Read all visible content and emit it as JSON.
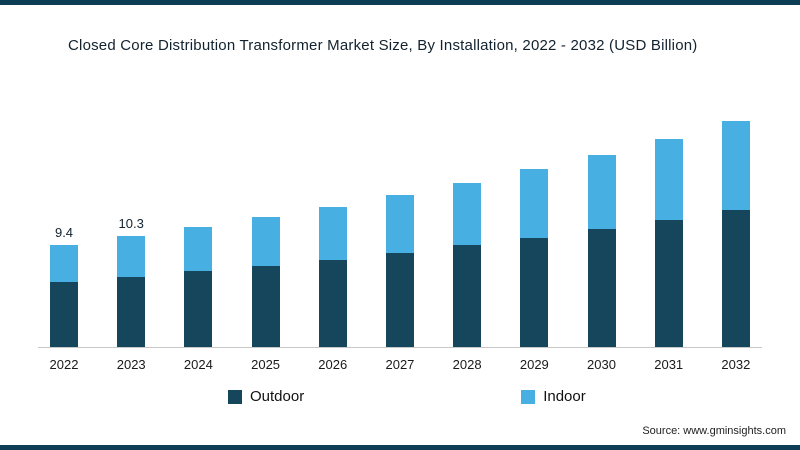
{
  "chart_data": {
    "type": "bar",
    "stacked": true,
    "title": "Closed Core Distribution Transformer Market Size, By Installation, 2022 - 2032 (USD Billion)",
    "categories": [
      "2022",
      "2023",
      "2024",
      "2025",
      "2026",
      "2027",
      "2028",
      "2029",
      "2030",
      "2031",
      "2032"
    ],
    "series": [
      {
        "name": "Outdoor",
        "color": "#16465c",
        "values": [
          6.0,
          6.5,
          7.0,
          7.5,
          8.1,
          8.7,
          9.4,
          10.1,
          10.9,
          11.8,
          12.7
        ]
      },
      {
        "name": "Indoor",
        "color": "#47afe2",
        "values": [
          3.4,
          3.8,
          4.1,
          4.5,
          4.9,
          5.4,
          5.8,
          6.4,
          6.9,
          7.5,
          8.2
        ]
      }
    ],
    "totals": [
      9.4,
      10.3,
      11.1,
      12.0,
      13.0,
      14.1,
      15.2,
      16.5,
      17.8,
      19.3,
      20.9
    ],
    "point_labels": {
      "2022": "9.4",
      "2023": "10.3"
    },
    "ylim": [
      0,
      22
    ],
    "grid": false,
    "legend_position": "bottom",
    "source": "Source: www.gminsights.com"
  }
}
